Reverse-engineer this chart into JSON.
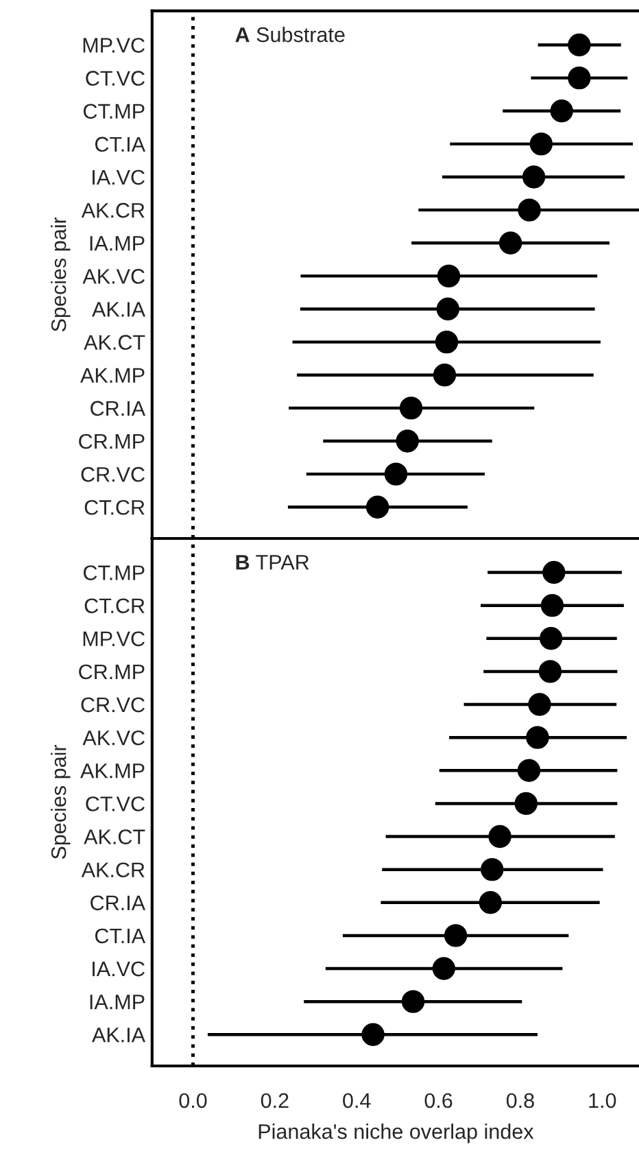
{
  "chart_data": [
    {
      "type": "scatter",
      "orientation": "horizontal",
      "title": "A Substrate",
      "ylabel": "Species pair",
      "categories": [
        "MP.VC",
        "CT.VC",
        "CT.MP",
        "CT.IA",
        "IA.VC",
        "AK.CR",
        "IA.MP",
        "AK.VC",
        "AK.IA",
        "AK.CT",
        "AK.MP",
        "CR.IA",
        "CR.MP",
        "CR.VC",
        "CT.CR"
      ],
      "values": [
        0.944,
        0.944,
        0.901,
        0.851,
        0.833,
        0.822,
        0.776,
        0.625,
        0.623,
        0.62,
        0.615,
        0.533,
        0.524,
        0.496,
        0.451
      ],
      "errors": [
        [
          0.843,
          1.046
        ],
        [
          0.826,
          1.062
        ],
        [
          0.757,
          1.045
        ],
        [
          0.628,
          1.075
        ],
        [
          0.609,
          1.055
        ],
        [
          0.551,
          1.09
        ],
        [
          0.534,
          1.018
        ],
        [
          0.263,
          0.988
        ],
        [
          0.262,
          0.982
        ],
        [
          0.243,
          0.996
        ],
        [
          0.254,
          0.979
        ],
        [
          0.234,
          0.834
        ],
        [
          0.318,
          0.731
        ],
        [
          0.277,
          0.713
        ],
        [
          0.232,
          0.671
        ]
      ],
      "color": "#000000",
      "marker": "circle",
      "xlim": [
        -0.1,
        1.09
      ],
      "tick_labels": "y",
      "grid": false,
      "legend": false,
      "ref_lines": [
        {
          "axis": "x",
          "value": 0,
          "line_style": "dotted",
          "color": "#000000"
        }
      ]
    },
    {
      "type": "scatter",
      "orientation": "horizontal",
      "title": "B TPAR",
      "ylabel": "Species pair",
      "xlabel": "Pianaka's niche overlap index",
      "categories": [
        "CT.MP",
        "CT.CR",
        "MP.VC",
        "CR.MP",
        "CR.VC",
        "AK.VC",
        "AK.MP",
        "CT.VC",
        "AK.CT",
        "AK.CR",
        "CR.IA",
        "CT.IA",
        "IA.VC",
        "IA.MP",
        "AK.IA"
      ],
      "values": [
        0.882,
        0.878,
        0.875,
        0.873,
        0.847,
        0.842,
        0.821,
        0.814,
        0.75,
        0.731,
        0.727,
        0.642,
        0.613,
        0.538,
        0.44
      ],
      "errors": [
        [
          0.72,
          1.048
        ],
        [
          0.703,
          1.053
        ],
        [
          0.717,
          1.036
        ],
        [
          0.71,
          1.037
        ],
        [
          0.662,
          1.035
        ],
        [
          0.626,
          1.06
        ],
        [
          0.602,
          1.037
        ],
        [
          0.592,
          1.037
        ],
        [
          0.471,
          1.031
        ],
        [
          0.462,
          1.002
        ],
        [
          0.459,
          0.994
        ],
        [
          0.366,
          0.918
        ],
        [
          0.324,
          0.903
        ],
        [
          0.271,
          0.804
        ],
        [
          0.036,
          0.842
        ]
      ],
      "color": "#000000",
      "marker": "circle",
      "xlim": [
        -0.1,
        1.09
      ],
      "xticks": [
        {
          "value": 0,
          "label": "0.0"
        },
        0.2,
        0.4,
        0.6,
        0.8,
        {
          "value": 1,
          "label": "1.0"
        }
      ],
      "grid": false,
      "legend": false,
      "ref_lines": [
        {
          "axis": "x",
          "value": 0,
          "line_style": "dotted",
          "color": "#000000"
        }
      ]
    }
  ]
}
